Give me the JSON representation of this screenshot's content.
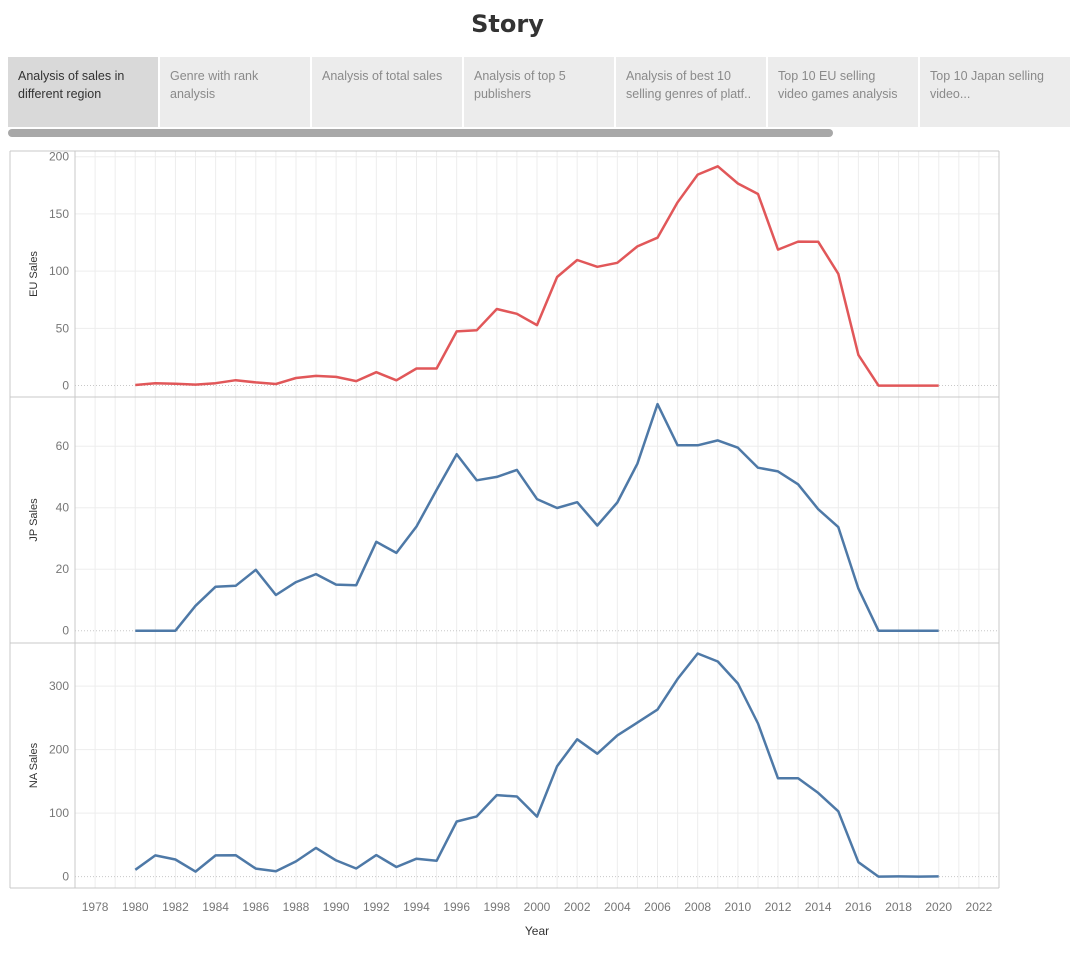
{
  "story": {
    "title": "Story"
  },
  "tabs": [
    {
      "label": "Analysis of sales in different region",
      "active": true
    },
    {
      "label": "Genre with rank analysis",
      "active": false
    },
    {
      "label": "Analysis of total sales",
      "active": false
    },
    {
      "label": "Analysis of top 5 publishers",
      "active": false
    },
    {
      "label": "Analysis of best 10 selling genres of platf..",
      "active": false
    },
    {
      "label": "Top 10 EU selling video games analysis",
      "active": false
    },
    {
      "label": "Top 10 Japan selling video...",
      "active": false
    }
  ],
  "chart_data": {
    "type": "line",
    "xlabel": "Year",
    "x_ticks": [
      1978,
      1980,
      1982,
      1984,
      1986,
      1988,
      1990,
      1992,
      1994,
      1996,
      1998,
      2000,
      2002,
      2004,
      2006,
      2008,
      2010,
      2012,
      2014,
      2016,
      2018,
      2020,
      2022
    ],
    "xlim": [
      1977,
      2023
    ],
    "x": [
      1980,
      1981,
      1982,
      1983,
      1984,
      1985,
      1986,
      1987,
      1988,
      1989,
      1990,
      1991,
      1992,
      1993,
      1994,
      1995,
      1996,
      1997,
      1998,
      1999,
      2000,
      2001,
      2002,
      2003,
      2004,
      2005,
      2006,
      2007,
      2008,
      2009,
      2010,
      2011,
      2012,
      2013,
      2014,
      2015,
      2016,
      2017,
      2018,
      2019,
      2020
    ],
    "grid": true,
    "panels": [
      {
        "ylabel": "EU Sales",
        "color": "#e15759",
        "ylim": [
          -10,
          205
        ],
        "y_ticks": [
          0,
          50,
          100,
          150,
          200
        ],
        "values": [
          0.5,
          2.0,
          1.5,
          0.8,
          2.1,
          4.7,
          2.8,
          1.4,
          6.6,
          8.4,
          7.6,
          3.9,
          11.7,
          4.6,
          14.9,
          14.9,
          47.3,
          48.3,
          66.9,
          62.7,
          52.8,
          94.9,
          109.7,
          103.8,
          107.3,
          121.6,
          129.2,
          160.2,
          184.4,
          191.6,
          176.6,
          167.4,
          118.8,
          125.8,
          125.7,
          97.7,
          26.8,
          0.0,
          0.0,
          0.0,
          0.0
        ]
      },
      {
        "ylabel": "JP Sales",
        "color": "#4e79a7",
        "ylim": [
          -4,
          76
        ],
        "y_ticks": [
          0,
          20,
          40,
          60
        ],
        "values": [
          0.0,
          0.0,
          0.0,
          8.1,
          14.3,
          14.6,
          19.8,
          11.6,
          15.8,
          18.4,
          15.0,
          14.8,
          28.9,
          25.3,
          33.9,
          45.8,
          57.4,
          48.9,
          50.0,
          52.3,
          42.8,
          39.9,
          41.8,
          34.2,
          41.7,
          54.3,
          73.7,
          60.3,
          60.3,
          61.9,
          59.5,
          53.0,
          51.8,
          47.6,
          39.5,
          33.7,
          13.7,
          0.0,
          0.0,
          0.0,
          0.0
        ]
      },
      {
        "ylabel": "NA Sales",
        "color": "#4e79a7",
        "ylim": [
          -18,
          368
        ],
        "y_ticks": [
          0,
          100,
          200,
          300
        ],
        "values": [
          10.6,
          33.4,
          26.9,
          7.8,
          33.3,
          33.7,
          12.5,
          8.5,
          23.9,
          45.2,
          25.5,
          12.8,
          33.9,
          15.1,
          28.2,
          24.8,
          86.8,
          94.8,
          128.4,
          126.1,
          94.5,
          173.9,
          216.2,
          193.6,
          222.4,
          242.6,
          263.1,
          311.5,
          351.4,
          338.9,
          304.2,
          241.2,
          154.8,
          154.8,
          131.9,
          102.8,
          22.7,
          0.0,
          0.3,
          0.0,
          0.3
        ]
      }
    ]
  }
}
